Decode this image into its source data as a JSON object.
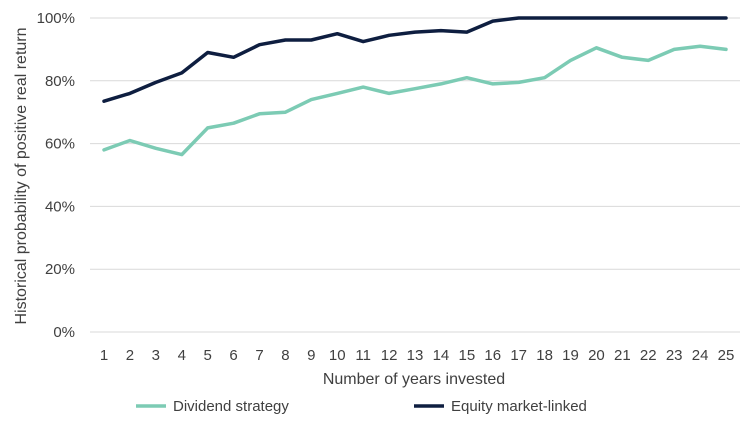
{
  "chart_data": {
    "type": "line",
    "title": "",
    "xlabel": "Number of years invested",
    "ylabel": "Historical probability of positive real return",
    "ylim": [
      0,
      100
    ],
    "yticks": [
      "0%",
      "20%",
      "40%",
      "60%",
      "80%",
      "100%"
    ],
    "ytick_values": [
      0,
      20,
      40,
      60,
      80,
      100
    ],
    "grid": "horizontal",
    "legend_position": "bottom",
    "x": [
      1,
      2,
      3,
      4,
      5,
      6,
      7,
      8,
      9,
      10,
      11,
      12,
      13,
      14,
      15,
      16,
      17,
      18,
      19,
      20,
      21,
      22,
      23,
      24,
      25
    ],
    "series": [
      {
        "name": "Dividend strategy",
        "color": "#7ccbb4",
        "values": [
          58,
          61,
          58.5,
          56.5,
          65,
          66.5,
          69.5,
          70,
          74,
          76,
          78,
          76,
          77.5,
          79,
          81,
          79,
          79.5,
          81,
          86.5,
          90.5,
          87.5,
          86.5,
          90,
          91,
          90
        ]
      },
      {
        "name": "Equity market-linked",
        "color": "#0e1e40",
        "values": [
          73.5,
          76,
          79.5,
          82.5,
          89,
          87.5,
          91.5,
          93,
          93,
          95,
          92.5,
          94.5,
          95.5,
          96,
          95.5,
          99,
          100,
          100,
          100,
          100,
          100,
          100,
          100,
          100,
          100
        ]
      }
    ]
  }
}
